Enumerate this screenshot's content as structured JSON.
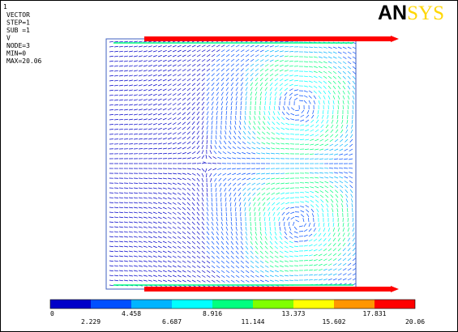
{
  "header": {
    "id": "1",
    "lines": [
      "VECTOR",
      "STEP=1",
      "SUB =1",
      "V",
      "NODE=3",
      "MIN=0",
      "MAX=20.06"
    ]
  },
  "logo": {
    "dark": "AN",
    "light": "SYS"
  },
  "legend": {
    "labels": [
      "0",
      "2.229",
      "4.458",
      "6.687",
      "8.916",
      "11.144",
      "13.373",
      "15.602",
      "17.831",
      "20.06"
    ],
    "colors": [
      "#0000c8",
      "#0050ff",
      "#00b4ff",
      "#00ffff",
      "#00ff80",
      "#80ff00",
      "#ffff00",
      "#ff9600",
      "#ff0000"
    ]
  }
}
